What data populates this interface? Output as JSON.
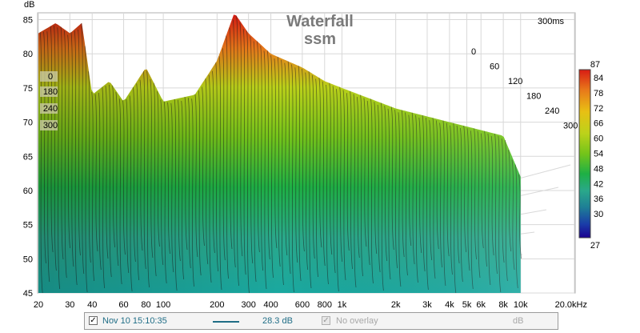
{
  "chart_data": {
    "type": "waterfall",
    "title": "Waterfall",
    "subtitle": "ssm",
    "ylabel": "dB",
    "time_window_label": "300ms",
    "ylim": [
      45,
      86
    ],
    "y_ticks": [
      45,
      50,
      55,
      60,
      65,
      70,
      75,
      80,
      85
    ],
    "x_scale": "log",
    "xlim": [
      20,
      20000
    ],
    "x_ticks": [
      {
        "value": 20,
        "label": "20"
      },
      {
        "value": 30,
        "label": "30"
      },
      {
        "value": 40,
        "label": "40"
      },
      {
        "value": 60,
        "label": "60"
      },
      {
        "value": 80,
        "label": "80"
      },
      {
        "value": 100,
        "label": "100"
      },
      {
        "value": 200,
        "label": "200"
      },
      {
        "value": 300,
        "label": "300"
      },
      {
        "value": 400,
        "label": "400"
      },
      {
        "value": 600,
        "label": "600"
      },
      {
        "value": 800,
        "label": "800"
      },
      {
        "value": 1000,
        "label": "1k"
      },
      {
        "value": 2000,
        "label": "2k"
      },
      {
        "value": 3000,
        "label": "3k"
      },
      {
        "value": 4000,
        "label": "4k"
      },
      {
        "value": 5000,
        "label": "5k"
      },
      {
        "value": 6000,
        "label": "6k"
      },
      {
        "value": 8000,
        "label": "8k"
      },
      {
        "value": 10000,
        "label": "10k"
      },
      {
        "value": 20000,
        "label": "20.0kHz"
      }
    ],
    "time_slices_ms": [
      0,
      60,
      120,
      180,
      240,
      300
    ],
    "left_time_labels": [
      "0",
      "180",
      "240",
      "300"
    ],
    "colorbar": {
      "min_label": "27",
      "max_label": "87",
      "ticks": [
        "84",
        "78",
        "72",
        "66",
        "60",
        "54",
        "48",
        "42",
        "36",
        "30"
      ],
      "colors": [
        "#1a0090",
        "#1a3ca8",
        "#1e7e96",
        "#2aa88a",
        "#1eb045",
        "#74c41a",
        "#bcd21a",
        "#e8c014",
        "#e8781a",
        "#d81c14"
      ]
    },
    "envelope_db": [
      [
        20,
        83
      ],
      [
        25,
        84.5
      ],
      [
        30,
        83
      ],
      [
        35,
        84.5
      ],
      [
        40,
        74
      ],
      [
        50,
        76
      ],
      [
        60,
        73
      ],
      [
        80,
        78
      ],
      [
        100,
        73
      ],
      [
        150,
        74
      ],
      [
        200,
        79
      ],
      [
        250,
        86
      ],
      [
        300,
        83
      ],
      [
        400,
        80
      ],
      [
        600,
        78
      ],
      [
        800,
        76
      ],
      [
        1000,
        75
      ],
      [
        2000,
        72
      ],
      [
        4000,
        70
      ],
      [
        8000,
        68
      ],
      [
        10000,
        62
      ]
    ]
  },
  "footer": {
    "checkbox_check": "✓",
    "date": "Nov 10 15:10:35",
    "level": "28.3 dB",
    "overlay": "No overlay",
    "unit": "dB"
  }
}
